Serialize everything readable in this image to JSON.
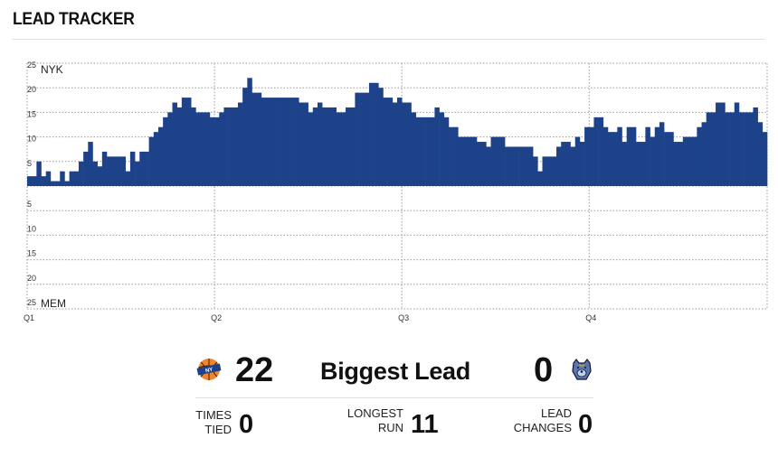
{
  "header": {
    "title": "LEAD TRACKER"
  },
  "teams": {
    "top": {
      "abbr": "NYK",
      "logo_icon": "knicks-logo-icon",
      "color": "#f58426"
    },
    "bottom": {
      "abbr": "MEM",
      "logo_icon": "grizzlies-logo-icon",
      "color": "#5d76a9"
    }
  },
  "chart_data": {
    "type": "area",
    "series_color": "#1d428a",
    "y_ticks_top": [
      "25",
      "20",
      "15",
      "10",
      "5"
    ],
    "y_ticks_bottom": [
      "5",
      "10",
      "15",
      "20",
      "25"
    ],
    "quarters": [
      "Q1",
      "Q2",
      "Q3",
      "Q4"
    ],
    "ylim": [
      -25,
      25
    ],
    "lead_by_possession": [
      2,
      2,
      5,
      2,
      3,
      1,
      1,
      3,
      1,
      3,
      3,
      5,
      7,
      9,
      5,
      4,
      7,
      6,
      6,
      6,
      6,
      3,
      7,
      5,
      7,
      7,
      10,
      11,
      12,
      14,
      15,
      17,
      16,
      18,
      18,
      16,
      15,
      15,
      15,
      14,
      14,
      15,
      16,
      16,
      16,
      17,
      20,
      22,
      19,
      19,
      18,
      18,
      18,
      18,
      18,
      18,
      18,
      18,
      17,
      17,
      15,
      16,
      17,
      16,
      16,
      16,
      15,
      15,
      16,
      16,
      19,
      19,
      19,
      21,
      21,
      20,
      18,
      18,
      17,
      18,
      17,
      17,
      15,
      14,
      14,
      14,
      14,
      16,
      15,
      14,
      12,
      12,
      10,
      10,
      10,
      10,
      9,
      9,
      8,
      10,
      10,
      10,
      8,
      8,
      8,
      8,
      8,
      8,
      6,
      3,
      6,
      6,
      6,
      8,
      9,
      9,
      8,
      10,
      9,
      12,
      12,
      14,
      14,
      12,
      11,
      11,
      12,
      9,
      12,
      12,
      9,
      9,
      12,
      10,
      12,
      13,
      11,
      11,
      9,
      9,
      10,
      10,
      10,
      12,
      13,
      15,
      15,
      17,
      17,
      15,
      15,
      17,
      15,
      15,
      15,
      16,
      13,
      11
    ],
    "quarter_start_index": [
      0,
      40,
      80,
      120
    ]
  },
  "summary": {
    "biggest_lead_label": "Biggest Lead",
    "biggest_lead_top": "22",
    "biggest_lead_bottom": "0",
    "times_tied_label_1": "TIMES",
    "times_tied_label_2": "TIED",
    "times_tied": "0",
    "longest_run_label_1": "LONGEST",
    "longest_run_label_2": "RUN",
    "longest_run": "11",
    "lead_changes_label_1": "LEAD",
    "lead_changes_label_2": "CHANGES",
    "lead_changes": "0"
  }
}
